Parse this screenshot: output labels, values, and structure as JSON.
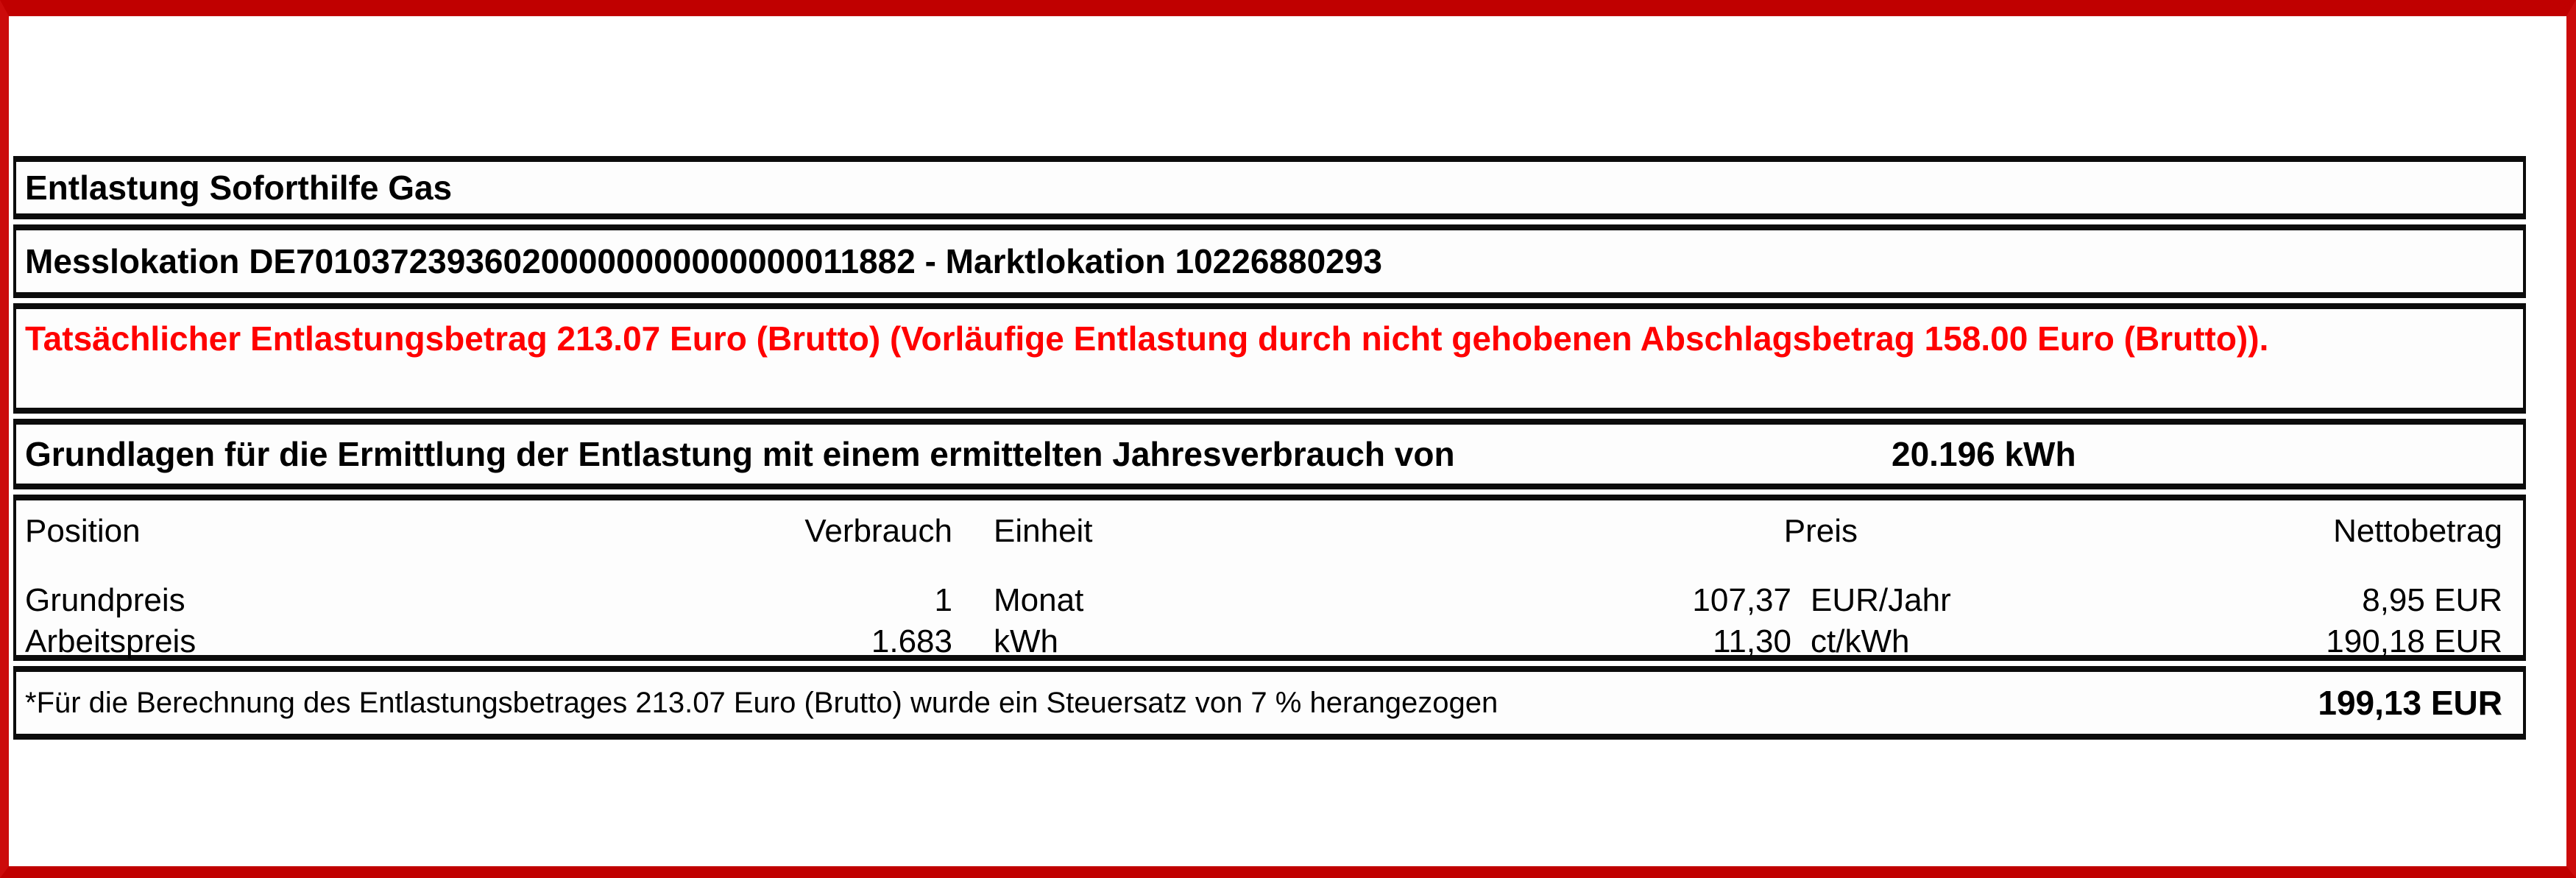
{
  "colors": {
    "frame_red": "#c00000",
    "alert_red": "#ff0000",
    "box_border": "#0c0c0c",
    "background": "#ffffff"
  },
  "header": {
    "title": "Entlastung Soforthilfe Gas"
  },
  "location": {
    "text": "Messlokation DE701037239360200000000000000011882 - Marktlokation 10226880293"
  },
  "alert": {
    "text": "Tatsächlicher Entlastungsbetrag 213.07 Euro (Brutto) (Vorläufige Entlastung durch nicht gehobenen Abschlagsbetrag 158.00 Euro (Brutto))."
  },
  "basis": {
    "label": "Grundlagen für die Ermittlung der Entlastung mit einem ermittelten Jahresverbrauch von",
    "value": "20.196 kWh"
  },
  "table": {
    "columns": {
      "position": "Position",
      "verbrauch": "Verbrauch",
      "einheit": "Einheit",
      "preis": "Preis",
      "nettobetrag": "Nettobetrag"
    },
    "rows": [
      {
        "position": "Grundpreis",
        "verbrauch": "1",
        "einheit": "Monat",
        "preis": "107,37",
        "preis_einheit": "EUR/Jahr",
        "nettobetrag": "8,95 EUR"
      },
      {
        "position": "Arbeitspreis",
        "verbrauch": "1.683",
        "einheit": "kWh",
        "preis": "11,30",
        "preis_einheit": "ct/kWh",
        "nettobetrag": "190,18 EUR"
      }
    ]
  },
  "footer": {
    "note": "*Für die Berechnung des Entlastungsbetrages 213.07 Euro (Brutto) wurde ein Steuersatz von 7 % herangezogen",
    "total": "199,13 EUR"
  }
}
